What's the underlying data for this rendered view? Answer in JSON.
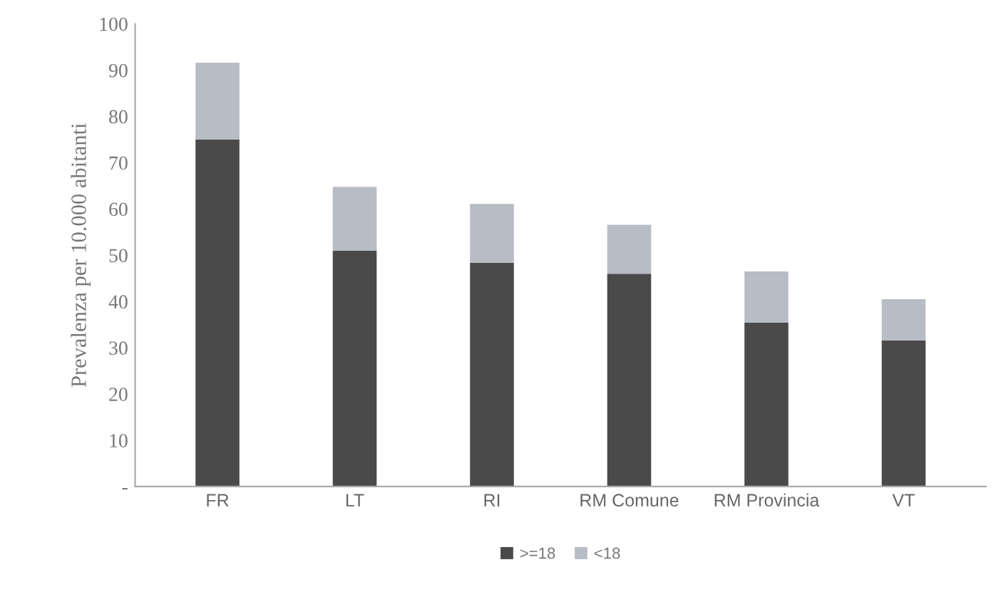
{
  "chart_data": {
    "type": "bar",
    "stacked": true,
    "ylabel": "Prevalenza per 10.000 abitanti",
    "categories": [
      "FR",
      "LT",
      "RI",
      "RM Comune",
      "RM Provincia",
      "VT"
    ],
    "series": [
      {
        "name": ">=18",
        "color": "#4a4a4a",
        "values": [
          75,
          51,
          48.4,
          46,
          35.4,
          31.6
        ]
      },
      {
        "name": "<18",
        "color": "#b8bcc4",
        "values": [
          16.6,
          13.8,
          12.7,
          10.6,
          11.1,
          8.9
        ]
      }
    ],
    "ylim": [
      0,
      100
    ],
    "yticks": [
      {
        "value": 0,
        "label": "-"
      },
      10,
      20,
      30,
      40,
      50,
      60,
      70,
      80,
      90,
      100
    ],
    "grid": false,
    "legend": "bottom"
  }
}
